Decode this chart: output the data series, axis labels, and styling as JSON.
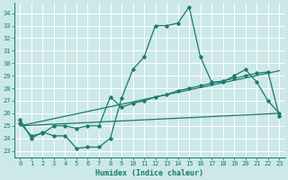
{
  "xlabel": "Humidex (Indice chaleur)",
  "bg_color": "#cce8e8",
  "line_color": "#1a7a6e",
  "grid_color": "#ffffff",
  "xlim": [
    -0.5,
    23.5
  ],
  "ylim": [
    22.5,
    34.8
  ],
  "yticks": [
    23,
    24,
    25,
    26,
    27,
    28,
    29,
    30,
    31,
    32,
    33,
    34
  ],
  "xticks": [
    0,
    1,
    2,
    3,
    4,
    5,
    6,
    7,
    8,
    9,
    10,
    11,
    12,
    13,
    14,
    15,
    16,
    17,
    18,
    19,
    20,
    21,
    22,
    23
  ],
  "curve1_x": [
    0,
    1,
    2,
    3,
    4,
    5,
    6,
    7,
    8,
    9,
    10,
    11,
    12,
    13,
    14,
    15,
    16,
    17,
    18,
    19,
    20,
    21,
    22,
    23
  ],
  "curve1_y": [
    25.5,
    24.0,
    24.5,
    24.2,
    24.2,
    23.2,
    23.3,
    23.3,
    24.0,
    27.2,
    29.5,
    30.5,
    33.0,
    33.0,
    33.2,
    34.5,
    30.5,
    28.5,
    28.5,
    29.0,
    29.5,
    28.5,
    27.0,
    26.0
  ],
  "curve2_x": [
    0,
    23
  ],
  "curve2_y": [
    25.0,
    29.4
  ],
  "curve3_x": [
    0,
    1,
    2,
    3,
    4,
    5,
    6,
    7,
    8,
    9,
    10,
    11,
    12,
    13,
    14,
    15,
    16,
    17,
    18,
    19,
    20,
    21,
    22,
    23
  ],
  "curve3_y": [
    25.2,
    24.2,
    24.4,
    25.0,
    25.0,
    24.8,
    25.0,
    25.0,
    27.3,
    26.5,
    26.8,
    27.0,
    27.3,
    27.5,
    27.8,
    28.0,
    28.2,
    28.4,
    28.6,
    28.8,
    29.0,
    29.2,
    29.3,
    25.8
  ],
  "label_fontsize": 5.5,
  "tick_fontsize": 5.0,
  "xlabel_fontsize": 6.0
}
